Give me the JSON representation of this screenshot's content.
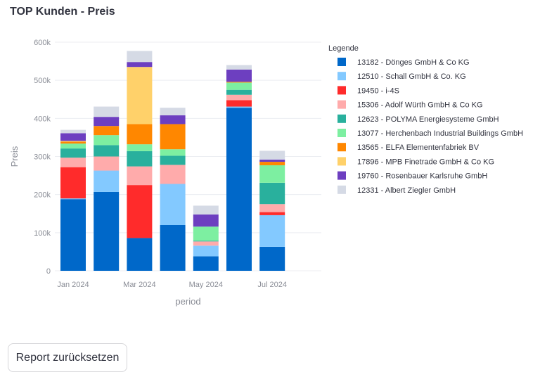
{
  "title": "TOP Kunden - Preis",
  "reset_button": "Report zurücksetzen",
  "chart_data": {
    "type": "bar",
    "stacked": true,
    "title": "TOP Kunden - Preis",
    "xlabel": "period",
    "ylabel": "Preis",
    "ylim": [
      0,
      600000
    ],
    "yticks": [
      0,
      100000,
      200000,
      300000,
      400000,
      500000,
      600000
    ],
    "ytick_labels": [
      "0",
      "100k",
      "200k",
      "300k",
      "400k",
      "500k",
      "600k"
    ],
    "categories": [
      "2024-01",
      "2024-02",
      "2024-03",
      "2024-04",
      "2024-05",
      "2024-06",
      "2024-07"
    ],
    "xtick_labels": [
      {
        "at": 0,
        "label": "Jan 2024"
      },
      {
        "at": 2,
        "label": "Mar 2024"
      },
      {
        "at": 4,
        "label": "May 2024"
      },
      {
        "at": 6,
        "label": "Jul 2024"
      }
    ],
    "grid": true,
    "legend_title": "Legende",
    "legend_position": "right",
    "series": [
      {
        "name": "13182 - Dönges GmbH & Co KG",
        "color": "#0068c9",
        "values": [
          188000,
          207000,
          86000,
          120000,
          38000,
          428000,
          63000
        ]
      },
      {
        "name": "12510 - Schall GmbH & Co. KG",
        "color": "#83c9ff",
        "values": [
          2000,
          56000,
          0,
          108000,
          28000,
          3000,
          83000
        ]
      },
      {
        "name": "19450 - i-4S",
        "color": "#ff2b2b",
        "values": [
          82000,
          0,
          139000,
          0,
          0,
          17000,
          8000
        ]
      },
      {
        "name": "15306 - Adolf Würth GmbH & Co KG",
        "color": "#ffabab",
        "values": [
          25000,
          37000,
          49000,
          50000,
          11000,
          14000,
          21000
        ]
      },
      {
        "name": "12623 - POLYMA Energiesysteme GmbH",
        "color": "#29b09d",
        "values": [
          24000,
          30000,
          40000,
          24000,
          2000,
          13000,
          56000
        ]
      },
      {
        "name": "13077 - Herchenbach Industrial Buildings GmbH",
        "color": "#7defa1",
        "values": [
          13000,
          26000,
          18000,
          17000,
          37000,
          19000,
          46000
        ]
      },
      {
        "name": "13565 - ELFA Elementenfabriek BV",
        "color": "#ff8700",
        "values": [
          5000,
          24000,
          53000,
          66000,
          0,
          2000,
          9000
        ]
      },
      {
        "name": "17896 - MPB Finetrade GmbH & Co KG",
        "color": "#ffd16a",
        "values": [
          2000,
          0,
          150000,
          0,
          0,
          0,
          0
        ]
      },
      {
        "name": "19760 - Rosenbauer Karlsruhe GmbH",
        "color": "#6d3fc0",
        "values": [
          20000,
          24000,
          13000,
          23000,
          32000,
          32000,
          6000
        ]
      },
      {
        "name": "12331 - Albert Ziegler GmbH",
        "color": "#d5dae5",
        "values": [
          9000,
          27000,
          29000,
          20000,
          23000,
          12000,
          23000
        ]
      }
    ]
  }
}
